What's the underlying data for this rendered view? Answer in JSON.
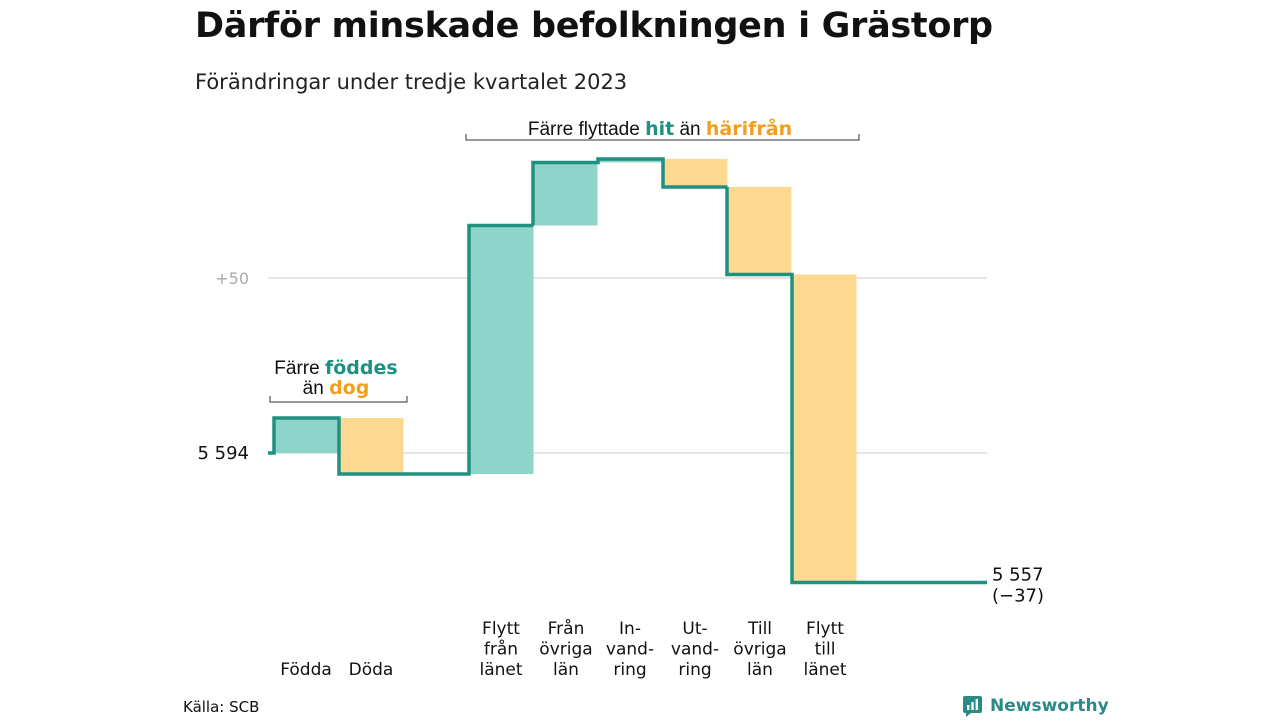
{
  "header": {
    "title": "Därför minskade befolkningen i Grästorp",
    "subtitle": "Förändringar under tredje kvartalet 2023"
  },
  "annotations": {
    "births": {
      "line1": "Färre",
      "line1_bold": "föddes",
      "line2": "än",
      "line2_bold": "dog"
    },
    "moves": {
      "text1": "Färre flyttade",
      "bold1": "hit",
      "text2": "än",
      "bold2": "härifrån"
    }
  },
  "colors": {
    "teal_line": "#1f9180",
    "teal_fill": "#8fd4cb",
    "orange_fill": "#fcd891",
    "orange_text": "#f0a020",
    "teal_text": "#1f9180"
  },
  "chart_data": {
    "type": "waterfall",
    "start_value": 5594,
    "start_label": "5  594",
    "end_value": 5557,
    "end_label": "5 557",
    "end_change_label": "(−37)",
    "ytick_value": 5644,
    "ytick_label": "+50",
    "ylim": [
      5530,
      5680
    ],
    "steps": [
      {
        "label_lines": [
          "Födda"
        ],
        "delta": 10,
        "kind": "increase"
      },
      {
        "label_lines": [
          "Döda"
        ],
        "delta": -16,
        "kind": "decrease"
      },
      {
        "label_lines": [
          "Flytt",
          "från",
          "länet"
        ],
        "delta": 71,
        "kind": "increase"
      },
      {
        "label_lines": [
          "Från",
          "övriga",
          "län"
        ],
        "delta": 18,
        "kind": "increase"
      },
      {
        "label_lines": [
          "In-",
          "vand-",
          "ring"
        ],
        "delta": 1,
        "kind": "increase"
      },
      {
        "label_lines": [
          "Ut-",
          "vand-",
          "ring"
        ],
        "delta": -8,
        "kind": "decrease"
      },
      {
        "label_lines": [
          "Till",
          "övriga",
          "län"
        ],
        "delta": -25,
        "kind": "decrease"
      },
      {
        "label_lines": [
          "Flytt",
          "till",
          "länet"
        ],
        "delta": -88,
        "kind": "decrease"
      }
    ]
  },
  "footer": {
    "source": "Källa: SCB",
    "brand": "Newsworthy",
    "brand_icon": "newsworthy-logo-icon"
  }
}
